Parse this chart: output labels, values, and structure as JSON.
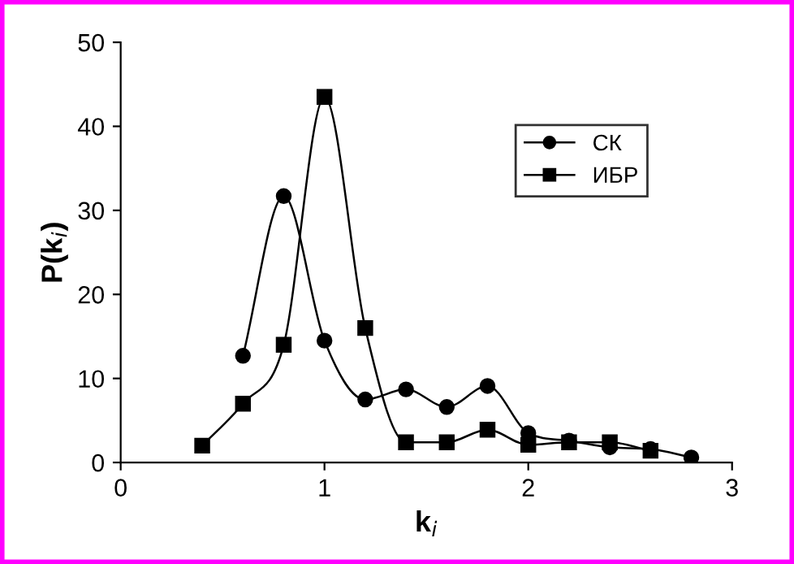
{
  "chart_data": {
    "type": "line",
    "xlabel": "k$_{i}$",
    "ylabel": "P(k$_{i}$)",
    "xlim": [
      0,
      3
    ],
    "ylim": [
      0,
      50
    ],
    "xticks": [
      0,
      1,
      2,
      3
    ],
    "yticks": [
      0,
      10,
      20,
      30,
      40,
      50
    ],
    "grid": false,
    "legend": "top right",
    "series": [
      {
        "name": "СК",
        "color": "#000000",
        "marker": "circle",
        "x": [
          0.6,
          0.8,
          1.0,
          1.2,
          1.4,
          1.6,
          1.8,
          2.0,
          2.2,
          2.4,
          2.6,
          2.8
        ],
        "values": [
          12.7,
          31.7,
          14.5,
          7.5,
          8.7,
          6.6,
          9.1,
          3.5,
          2.6,
          1.8,
          1.6,
          0.6
        ]
      },
      {
        "name": "ИБР",
        "color": "#000000",
        "marker": "square",
        "x": [
          0.4,
          0.6,
          0.8,
          1.0,
          1.2,
          1.4,
          1.6,
          1.8,
          2.0,
          2.2,
          2.4,
          2.6
        ],
        "values": [
          2.0,
          7.0,
          14.0,
          43.5,
          16.0,
          2.4,
          2.4,
          3.9,
          2.1,
          2.4,
          2.4,
          1.4
        ]
      }
    ]
  }
}
